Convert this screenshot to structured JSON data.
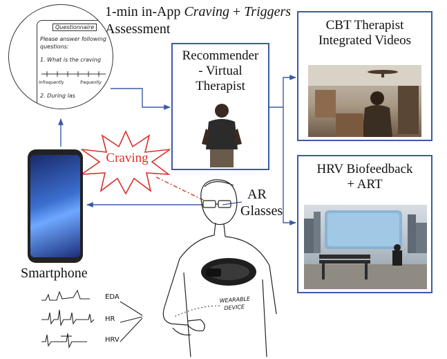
{
  "assessment": {
    "line1_prefix": "1-min in-App ",
    "craving": "Craving",
    "plus": " + ",
    "triggers": "Triggers",
    "line2": "Assessment"
  },
  "phone_sketch": {
    "title": "Questionnaire",
    "line1": "Please answer following",
    "line2": "questions:",
    "q1": "1. What is the craving",
    "scale_left": "Infrequently",
    "scale_right": "frequently",
    "q2": "2. During las"
  },
  "recommender": {
    "line1": "Recommender",
    "line2": "- Virtual",
    "line3": "Therapist"
  },
  "cbt": {
    "line1": "CBT  Therapist",
    "line2": "Integrated Videos"
  },
  "hrv_box": {
    "line1": "HRV Biofeedback",
    "line2": "+ ART"
  },
  "craving_label": "Craving",
  "ar": {
    "line1": "AR",
    "line2": "Glasses"
  },
  "smartphone_label": "Smartphone",
  "signals": {
    "eda": "EDA",
    "hr": "HR",
    "hrv": "HRV"
  },
  "wearable": {
    "line1": "WEARABLE",
    "line2": "DEVICE"
  },
  "colors": {
    "arrow": "#3b5aa3",
    "craving_star": "#d9302a",
    "box_border": "#3b5aa3"
  }
}
